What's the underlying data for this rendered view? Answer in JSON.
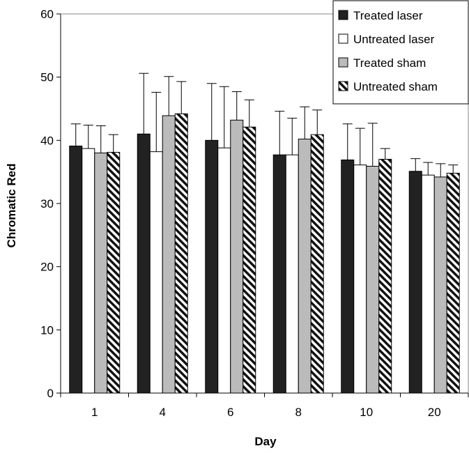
{
  "chart_data": {
    "type": "bar",
    "title": "",
    "xlabel": "Day",
    "ylabel": "Chromatic Red",
    "ylim": [
      0,
      60
    ],
    "yticks": [
      0,
      10,
      20,
      30,
      40,
      50,
      60
    ],
    "grid": false,
    "legend_position": "top-right",
    "categories": [
      "1",
      "4",
      "6",
      "8",
      "10",
      "20"
    ],
    "series": [
      {
        "name": "Treated laser",
        "color": "#222222",
        "pattern": "solid",
        "values": [
          39.1,
          41.0,
          40.0,
          37.7,
          36.9,
          35.1
        ],
        "errors": [
          3.5,
          9.6,
          9.0,
          6.9,
          5.7,
          2.0
        ]
      },
      {
        "name": "Untreated laser",
        "color": "#ffffff",
        "pattern": "solid",
        "values": [
          38.7,
          38.2,
          38.8,
          37.7,
          36.1,
          34.5
        ],
        "errors": [
          3.7,
          9.4,
          9.7,
          5.8,
          5.8,
          2.0
        ]
      },
      {
        "name": "Treated sham",
        "color": "#bbbbbb",
        "pattern": "solid",
        "values": [
          38.0,
          43.9,
          43.2,
          40.2,
          35.9,
          34.2
        ],
        "errors": [
          4.3,
          6.2,
          4.5,
          5.1,
          6.8,
          2.1
        ]
      },
      {
        "name": "Untreated sham",
        "color": "#111111",
        "pattern": "diagonal-stripes",
        "values": [
          38.1,
          44.2,
          42.1,
          40.9,
          37.0,
          34.8
        ],
        "errors": [
          2.8,
          5.1,
          4.3,
          3.9,
          1.7,
          1.3
        ]
      }
    ]
  }
}
